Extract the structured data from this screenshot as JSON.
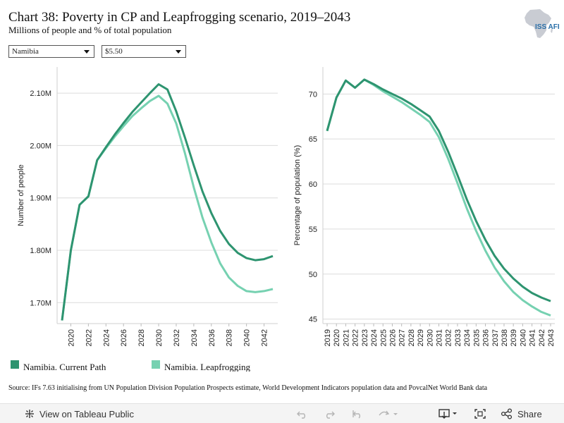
{
  "header": {
    "title": "Chart 38: Poverty in CP and Leapfrogging scenario, 2019–2043",
    "subtitle": "Millions of people and % of total population",
    "logo_text": "ISS AFI"
  },
  "filters": {
    "country": "Namibia",
    "poverty_line": "$5.50"
  },
  "colors": {
    "current_path": "#2e9470",
    "leapfrogging": "#76d1b1"
  },
  "chart_data": [
    {
      "type": "line",
      "ylabel": "Number of people",
      "ylim": [
        1.66,
        2.15
      ],
      "yticks": [
        1.7,
        1.8,
        1.9,
        2.0,
        2.1
      ],
      "ytick_labels": [
        "1.70M",
        "1.80M",
        "1.90M",
        "2.00M",
        "2.10M"
      ],
      "x": [
        2019,
        2020,
        2021,
        2022,
        2023,
        2024,
        2025,
        2026,
        2027,
        2028,
        2029,
        2030,
        2031,
        2032,
        2033,
        2034,
        2035,
        2036,
        2037,
        2038,
        2039,
        2040,
        2041,
        2042,
        2043
      ],
      "xticks": [
        2020,
        2022,
        2024,
        2026,
        2028,
        2030,
        2032,
        2034,
        2036,
        2038,
        2040,
        2042
      ],
      "series": [
        {
          "name": "Namibia. Current Path",
          "values": [
            1.666,
            1.8,
            1.887,
            1.903,
            1.972,
            1.997,
            2.021,
            2.043,
            2.064,
            2.082,
            2.1,
            2.117,
            2.107,
            2.065,
            2.015,
            1.962,
            1.912,
            1.871,
            1.837,
            1.812,
            1.795,
            1.785,
            1.781,
            1.783,
            1.789
          ]
        },
        {
          "name": "Namibia. Leapfrogging",
          "values": [
            1.666,
            1.8,
            1.887,
            1.903,
            1.972,
            1.995,
            2.017,
            2.037,
            2.056,
            2.071,
            2.085,
            2.095,
            2.08,
            2.042,
            1.985,
            1.92,
            1.862,
            1.815,
            1.775,
            1.748,
            1.732,
            1.722,
            1.72,
            1.722,
            1.726
          ]
        }
      ]
    },
    {
      "type": "line",
      "ylabel": "Percentage of population (%)",
      "ylim": [
        44.5,
        73
      ],
      "yticks": [
        45,
        50,
        55,
        60,
        65,
        70
      ],
      "ytick_labels": [
        "45",
        "50",
        "55",
        "60",
        "65",
        "70"
      ],
      "x": [
        2019,
        2020,
        2021,
        2022,
        2023,
        2024,
        2025,
        2026,
        2027,
        2028,
        2029,
        2030,
        2031,
        2032,
        2033,
        2034,
        2035,
        2036,
        2037,
        2038,
        2039,
        2040,
        2041,
        2042,
        2043
      ],
      "xticks": [
        2019,
        2020,
        2021,
        2022,
        2023,
        2024,
        2025,
        2026,
        2027,
        2028,
        2029,
        2030,
        2031,
        2032,
        2033,
        2034,
        2035,
        2036,
        2037,
        2038,
        2039,
        2040,
        2041,
        2042,
        2043
      ],
      "series": [
        {
          "name": "Namibia. Current Path",
          "values": [
            65.9,
            69.6,
            71.5,
            70.7,
            71.6,
            71.1,
            70.5,
            70.0,
            69.5,
            68.9,
            68.2,
            67.5,
            65.9,
            63.6,
            61.0,
            58.3,
            55.9,
            53.8,
            52.0,
            50.6,
            49.5,
            48.6,
            47.9,
            47.4,
            47.0
          ]
        },
        {
          "name": "Namibia. Leapfrogging",
          "values": [
            65.9,
            69.6,
            71.5,
            70.7,
            71.6,
            71.0,
            70.3,
            69.7,
            69.1,
            68.4,
            67.7,
            66.9,
            65.2,
            62.8,
            60.1,
            57.3,
            54.8,
            52.6,
            50.7,
            49.2,
            48.0,
            47.1,
            46.4,
            45.8,
            45.4
          ]
        }
      ]
    }
  ],
  "legend": {
    "items": [
      "Namibia. Current Path",
      "Namibia. Leapfrogging"
    ]
  },
  "source": "Source: IFs 7.63 initialising from UN Population Division Population Prospects estimate, World Development Indicators population data and PovcalNet World Bank data",
  "toolbar": {
    "view_label": "View on Tableau Public",
    "share_label": "Share"
  }
}
